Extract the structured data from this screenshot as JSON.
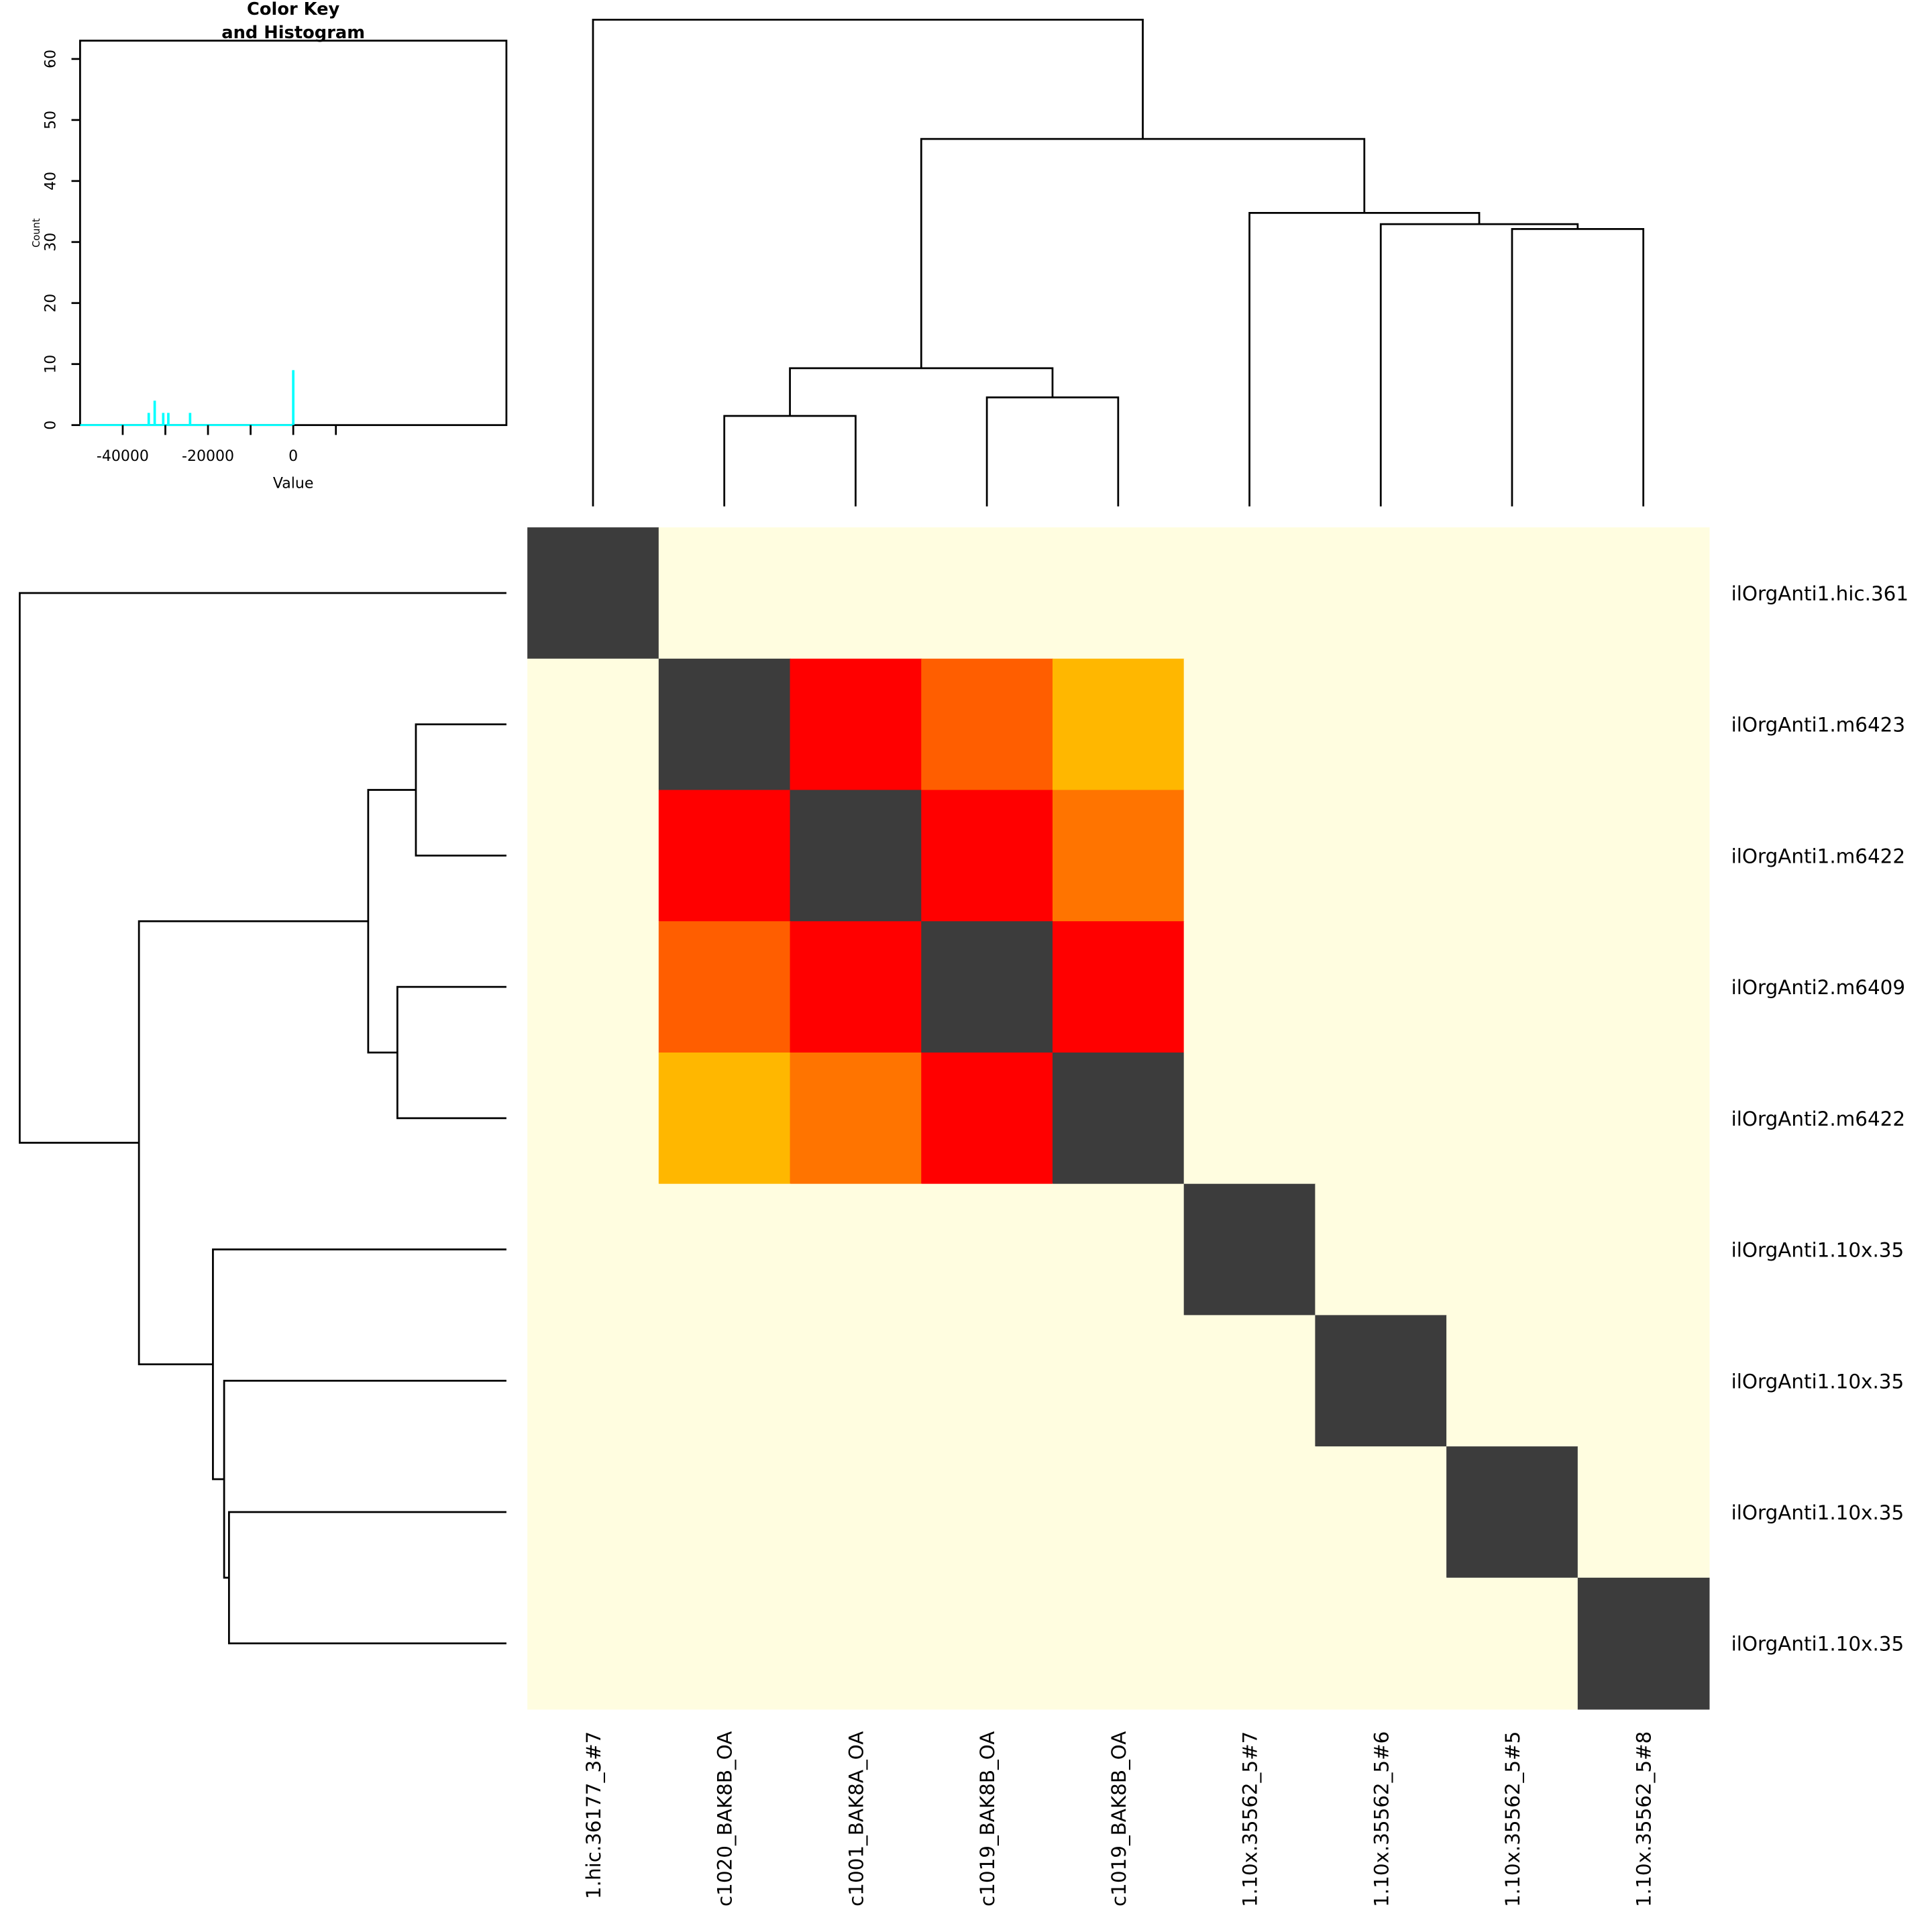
{
  "chart_data": {
    "type": "heatmap",
    "row_labels": [
      "ilOrgAnti1.hic.361",
      "ilOrgAnti1.m6423",
      "ilOrgAnti1.m6422",
      "ilOrgAnti2.m6409",
      "ilOrgAnti2.m6422",
      "ilOrgAnti1.10x.35",
      "ilOrgAnti1.10x.35",
      "ilOrgAnti1.10x.35",
      "ilOrgAnti1.10x.35"
    ],
    "col_labels": [
      "1.hic.36177_3#7",
      "c1020_BAK8B_OA",
      "c1001_BAK8A_OA",
      "c1019_BAK8B_OA",
      "c1019_BAK8B_OA",
      "1.10x.35562_5#7",
      "1.10x.35562_5#6",
      "1.10x.35562_5#5",
      "1.10x.35562_5#8"
    ],
    "matrix": [
      [
        0,
        null,
        null,
        null,
        null,
        null,
        null,
        null,
        null
      ],
      [
        null,
        0,
        -33900,
        -30500,
        -24200,
        null,
        null,
        null,
        null
      ],
      [
        null,
        -33900,
        0,
        -32300,
        -29300,
        null,
        null,
        null,
        null
      ],
      [
        null,
        -30500,
        -32300,
        0,
        -32500,
        null,
        null,
        null,
        null
      ],
      [
        null,
        -24200,
        -29300,
        -32500,
        0,
        null,
        null,
        null,
        null
      ],
      [
        null,
        null,
        null,
        null,
        null,
        0,
        null,
        null,
        null
      ],
      [
        null,
        null,
        null,
        null,
        null,
        null,
        0,
        null,
        null
      ],
      [
        null,
        null,
        null,
        null,
        null,
        null,
        null,
        0,
        null
      ],
      [
        null,
        null,
        null,
        null,
        null,
        null,
        null,
        null,
        0
      ]
    ],
    "colors": {
      "diagonal": "#3c3c3c",
      "na": "#fffde0",
      "scale": [
        "#ff0000",
        "#ff5e00",
        "#ff7400",
        "#ff9900",
        "#ffb700"
      ]
    },
    "dendrogram": {
      "leaves": 9,
      "merges": [
        {
          "a": [
            1
          ],
          "b": [
            2
          ],
          "height": 0.186
        },
        {
          "a": [
            3
          ],
          "b": [
            4
          ],
          "height": 0.224
        },
        {
          "a": [
            1,
            2
          ],
          "b": [
            3,
            4
          ],
          "height": 0.284
        },
        {
          "a": [
            7
          ],
          "b": [
            8
          ],
          "height": 0.57
        },
        {
          "a": [
            6
          ],
          "b": [
            7,
            8
          ],
          "height": 0.58
        },
        {
          "a": [
            5
          ],
          "b": [
            6,
            7,
            8
          ],
          "height": 0.603
        },
        {
          "a": [
            1,
            2,
            3,
            4
          ],
          "b": [
            5,
            6,
            7,
            8
          ],
          "height": 0.755
        },
        {
          "a": [
            0
          ],
          "b": [
            1,
            2,
            3,
            4,
            5,
            6,
            7,
            8
          ],
          "height": 1.0
        }
      ]
    },
    "color_key": {
      "title_line1": "Color Key",
      "title_line2": "and Histogram",
      "xlabel": "Value",
      "ylabel": "Count",
      "xlim": [
        -50000,
        50000
      ],
      "ylim": [
        0,
        63
      ],
      "x_ticks": [
        -40000,
        -30000,
        -20000,
        -10000,
        0,
        10000
      ],
      "x_tick_labels": [
        "-40000",
        "",
        "-20000",
        "",
        "0",
        ""
      ],
      "y_ticks": [
        0,
        10,
        20,
        30,
        40,
        50,
        60
      ],
      "y_tick_labels": [
        "0",
        "10",
        "20",
        "30",
        "40",
        "50",
        "60"
      ],
      "hist_color": "#00ffff",
      "bars": [
        {
          "value": -33900,
          "count": 2
        },
        {
          "value": -32500,
          "count": 4
        },
        {
          "value": -30500,
          "count": 2
        },
        {
          "value": -29300,
          "count": 2
        },
        {
          "value": -24200,
          "count": 2
        },
        {
          "value": 0,
          "count": 9
        }
      ]
    }
  }
}
